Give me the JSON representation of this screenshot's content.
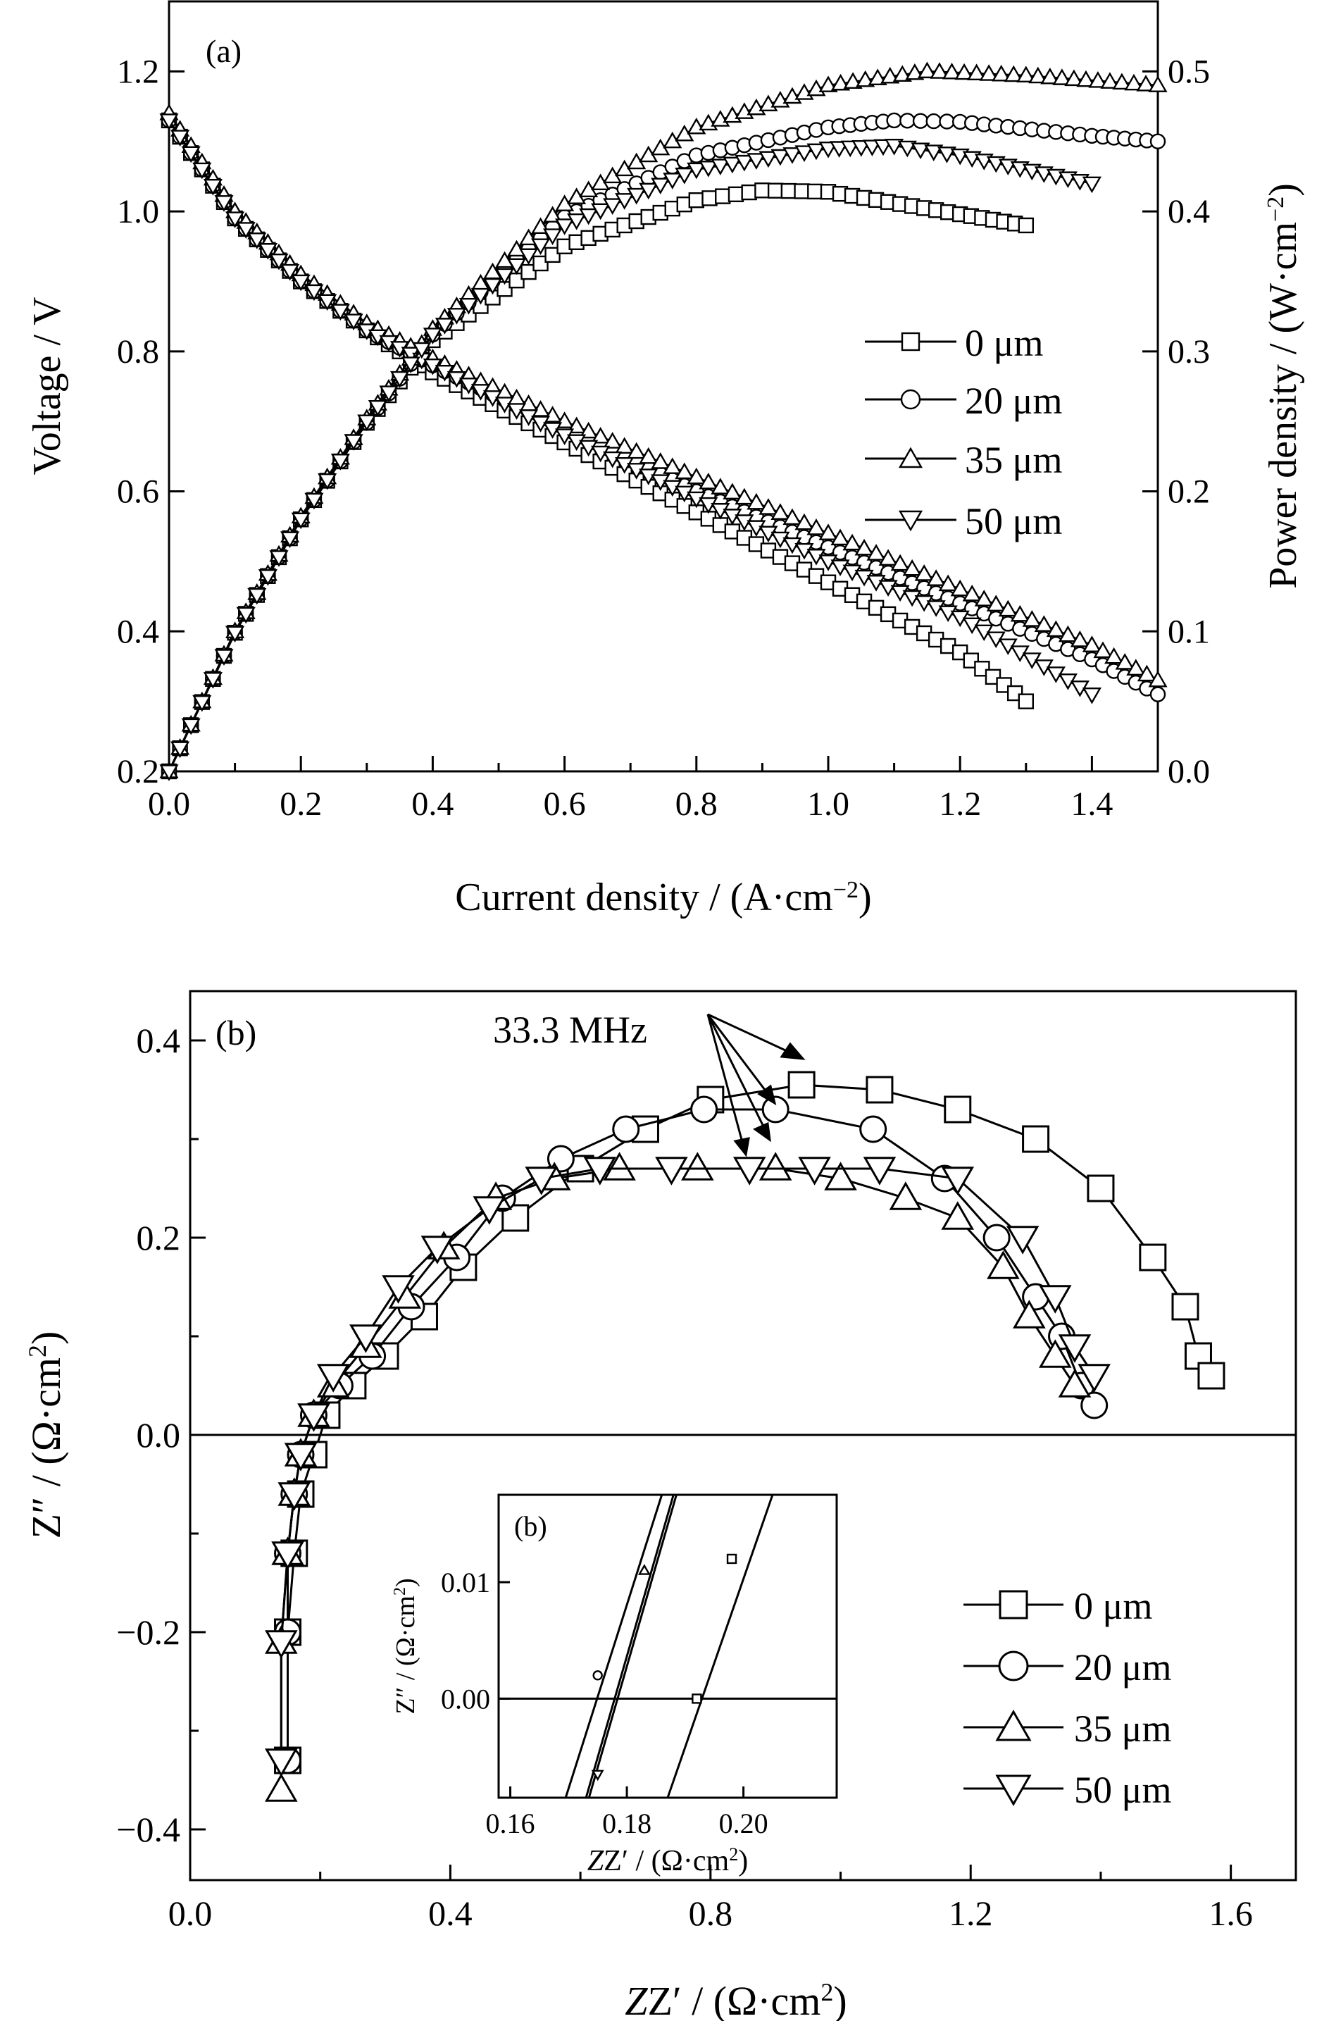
{
  "chart_data": [
    {
      "panel": "(a)",
      "type": "line",
      "xlabel": "Current density / (A·cm",
      "xlabel_sup": "−2",
      "xlabel_end": ")",
      "ylabel": "Voltage / V",
      "y2label": "Power density / (W·cm",
      "y2label_sup": "−2",
      "y2label_end": ")",
      "xlim": [
        0,
        1.5
      ],
      "ylim": [
        0.2,
        1.3
      ],
      "y2lim": [
        0,
        0.55
      ],
      "xticks": [
        "0.0",
        "0.2",
        "0.4",
        "0.6",
        "0.8",
        "1.0",
        "1.2",
        "1.4"
      ],
      "yticks": [
        "0.2",
        "0.4",
        "0.6",
        "0.8",
        "1.0",
        "1.2"
      ],
      "y2ticks": [
        "0.0",
        "0.1",
        "0.2",
        "0.3",
        "0.4",
        "0.5"
      ],
      "legend_position": "center-right",
      "series": [
        {
          "name": "0 μm",
          "marker": "square",
          "voltage": [
            [
              0,
              1.13
            ],
            [
              0.1,
              0.99
            ],
            [
              0.2,
              0.9
            ],
            [
              0.3,
              0.83
            ],
            [
              0.4,
              0.77
            ],
            [
              0.6,
              0.67
            ],
            [
              0.8,
              0.57
            ],
            [
              1.0,
              0.47
            ],
            [
              1.2,
              0.37
            ],
            [
              1.3,
              0.3
            ]
          ],
          "power": [
            [
              0,
              0
            ],
            [
              0.1,
              0.099
            ],
            [
              0.2,
              0.18
            ],
            [
              0.3,
              0.249
            ],
            [
              0.4,
              0.308
            ],
            [
              0.6,
              0.375
            ],
            [
              0.8,
              0.408
            ],
            [
              0.9,
              0.415
            ],
            [
              1.0,
              0.414
            ],
            [
              1.2,
              0.398
            ],
            [
              1.3,
              0.39
            ]
          ]
        },
        {
          "name": "20 μm",
          "marker": "circle",
          "voltage": [
            [
              0,
              1.13
            ],
            [
              0.1,
              0.99
            ],
            [
              0.2,
              0.9
            ],
            [
              0.3,
              0.83
            ],
            [
              0.4,
              0.78
            ],
            [
              0.6,
              0.69
            ],
            [
              0.8,
              0.6
            ],
            [
              1.0,
              0.52
            ],
            [
              1.2,
              0.44
            ],
            [
              1.4,
              0.36
            ],
            [
              1.5,
              0.31
            ]
          ],
          "power": [
            [
              0,
              0
            ],
            [
              0.1,
              0.099
            ],
            [
              0.2,
              0.18
            ],
            [
              0.3,
              0.249
            ],
            [
              0.4,
              0.312
            ],
            [
              0.6,
              0.396
            ],
            [
              0.8,
              0.44
            ],
            [
              1.0,
              0.46
            ],
            [
              1.1,
              0.465
            ],
            [
              1.2,
              0.464
            ],
            [
              1.4,
              0.454
            ],
            [
              1.5,
              0.45
            ]
          ]
        },
        {
          "name": "35 μm",
          "marker": "triangle-up",
          "voltage": [
            [
              0,
              1.14
            ],
            [
              0.1,
              1.0
            ],
            [
              0.2,
              0.91
            ],
            [
              0.3,
              0.84
            ],
            [
              0.4,
              0.79
            ],
            [
              0.6,
              0.7
            ],
            [
              0.8,
              0.62
            ],
            [
              1.0,
              0.54
            ],
            [
              1.2,
              0.46
            ],
            [
              1.4,
              0.38
            ],
            [
              1.5,
              0.33
            ]
          ],
          "power": [
            [
              0,
              0
            ],
            [
              0.1,
              0.1
            ],
            [
              0.2,
              0.182
            ],
            [
              0.3,
              0.252
            ],
            [
              0.4,
              0.316
            ],
            [
              0.6,
              0.405
            ],
            [
              0.8,
              0.46
            ],
            [
              1.0,
              0.49
            ],
            [
              1.15,
              0.5
            ],
            [
              1.3,
              0.497
            ],
            [
              1.5,
              0.49
            ]
          ]
        },
        {
          "name": "50 μm",
          "marker": "triangle-down",
          "voltage": [
            [
              0,
              1.13
            ],
            [
              0.1,
              0.99
            ],
            [
              0.2,
              0.9
            ],
            [
              0.3,
              0.83
            ],
            [
              0.4,
              0.78
            ],
            [
              0.6,
              0.68
            ],
            [
              0.8,
              0.59
            ],
            [
              1.0,
              0.5
            ],
            [
              1.2,
              0.42
            ],
            [
              1.4,
              0.31
            ]
          ],
          "power": [
            [
              0,
              0
            ],
            [
              0.1,
              0.099
            ],
            [
              0.2,
              0.18
            ],
            [
              0.3,
              0.25
            ],
            [
              0.4,
              0.312
            ],
            [
              0.6,
              0.39
            ],
            [
              0.8,
              0.43
            ],
            [
              1.0,
              0.445
            ],
            [
              1.1,
              0.447
            ],
            [
              1.2,
              0.44
            ],
            [
              1.4,
              0.42
            ]
          ]
        }
      ]
    },
    {
      "panel": "(b)",
      "type": "scatter",
      "xlabel": "Z′ / (Ω·cm",
      "xlabel_sup": "2",
      "xlabel_end": ")",
      "ylabel": "Z″ / (Ω·cm",
      "ylabel_sup": "2",
      "ylabel_end": ")",
      "xlim": [
        0,
        1.7
      ],
      "ylim": [
        -0.44,
        0.44
      ],
      "xticks": [
        "0.0",
        "0.4",
        "0.8",
        "1.2",
        "1.6"
      ],
      "yticks": [
        "−0.4",
        "−0.2",
        "0.0",
        "0.2",
        "0.4"
      ],
      "annotation": "33.3 MHz",
      "legend_position": "bottom-right",
      "series": [
        {
          "name": "0 μm",
          "marker": "square",
          "points": [
            [
              0.15,
              -0.33
            ],
            [
              0.15,
              -0.2
            ],
            [
              0.16,
              -0.12
            ],
            [
              0.17,
              -0.06
            ],
            [
              0.19,
              -0.02
            ],
            [
              0.21,
              0.02
            ],
            [
              0.25,
              0.05
            ],
            [
              0.3,
              0.08
            ],
            [
              0.36,
              0.12
            ],
            [
              0.42,
              0.17
            ],
            [
              0.5,
              0.22
            ],
            [
              0.6,
              0.27
            ],
            [
              0.7,
              0.31
            ],
            [
              0.8,
              0.34
            ],
            [
              0.94,
              0.355
            ],
            [
              1.06,
              0.35
            ],
            [
              1.18,
              0.33
            ],
            [
              1.3,
              0.3
            ],
            [
              1.4,
              0.25
            ],
            [
              1.48,
              0.18
            ],
            [
              1.53,
              0.13
            ],
            [
              1.55,
              0.08
            ],
            [
              1.57,
              0.06
            ]
          ]
        },
        {
          "name": "20 μm",
          "marker": "circle",
          "points": [
            [
              0.15,
              -0.33
            ],
            [
              0.15,
              -0.2
            ],
            [
              0.15,
              -0.12
            ],
            [
              0.16,
              -0.06
            ],
            [
              0.17,
              -0.02
            ],
            [
              0.19,
              0.02
            ],
            [
              0.23,
              0.05
            ],
            [
              0.28,
              0.08
            ],
            [
              0.34,
              0.13
            ],
            [
              0.41,
              0.18
            ],
            [
              0.48,
              0.24
            ],
            [
              0.57,
              0.28
            ],
            [
              0.67,
              0.31
            ],
            [
              0.79,
              0.33
            ],
            [
              0.9,
              0.33
            ],
            [
              1.05,
              0.31
            ],
            [
              1.16,
              0.26
            ],
            [
              1.24,
              0.2
            ],
            [
              1.3,
              0.14
            ],
            [
              1.34,
              0.1
            ],
            [
              1.37,
              0.05
            ],
            [
              1.39,
              0.03
            ]
          ]
        },
        {
          "name": "35 μm",
          "marker": "triangle-up",
          "points": [
            [
              0.14,
              -0.36
            ],
            [
              0.14,
              -0.21
            ],
            [
              0.15,
              -0.12
            ],
            [
              0.16,
              -0.06
            ],
            [
              0.17,
              -0.02
            ],
            [
              0.19,
              0.02
            ],
            [
              0.22,
              0.05
            ],
            [
              0.27,
              0.09
            ],
            [
              0.33,
              0.14
            ],
            [
              0.39,
              0.19
            ],
            [
              0.47,
              0.24
            ],
            [
              0.56,
              0.26
            ],
            [
              0.66,
              0.27
            ],
            [
              0.78,
              0.27
            ],
            [
              0.9,
              0.27
            ],
            [
              1.0,
              0.26
            ],
            [
              1.1,
              0.24
            ],
            [
              1.18,
              0.22
            ],
            [
              1.25,
              0.17
            ],
            [
              1.29,
              0.12
            ],
            [
              1.33,
              0.08
            ],
            [
              1.36,
              0.05
            ]
          ]
        },
        {
          "name": "50 μm",
          "marker": "triangle-down",
          "points": [
            [
              0.14,
              -0.33
            ],
            [
              0.14,
              -0.21
            ],
            [
              0.15,
              -0.12
            ],
            [
              0.16,
              -0.06
            ],
            [
              0.17,
              -0.02
            ],
            [
              0.19,
              0.02
            ],
            [
              0.22,
              0.06
            ],
            [
              0.27,
              0.1
            ],
            [
              0.32,
              0.15
            ],
            [
              0.38,
              0.19
            ],
            [
              0.46,
              0.23
            ],
            [
              0.54,
              0.26
            ],
            [
              0.63,
              0.27
            ],
            [
              0.74,
              0.27
            ],
            [
              0.86,
              0.27
            ],
            [
              0.96,
              0.27
            ],
            [
              1.06,
              0.27
            ],
            [
              1.18,
              0.26
            ],
            [
              1.28,
              0.2
            ],
            [
              1.33,
              0.14
            ],
            [
              1.36,
              0.09
            ],
            [
              1.39,
              0.06
            ]
          ]
        }
      ],
      "inset": {
        "panel": "(b)",
        "xlabel": "Z′ / (Ω·cm",
        "xlabel_sup": "2",
        "xlabel_end": ")",
        "ylabel": "Z″ / (Ω·cm",
        "ylabel_sup": "2",
        "ylabel_end": ")",
        "xlim": [
          0.158,
          0.216
        ],
        "ylim": [
          -0.0085,
          0.0175
        ],
        "xticks": [
          "0.16",
          "0.18",
          "0.20"
        ],
        "yticks": [
          "0.00",
          "0.01"
        ],
        "lines": [
          {
            "name": "0 μm",
            "marker": "square",
            "p1": [
              0.187,
              -0.0085
            ],
            "p2": [
              0.205,
              0.0175
            ],
            "marks": [
              [
                0.192,
                0.0
              ],
              [
                0.198,
                0.012
              ]
            ]
          },
          {
            "name": "20 μm",
            "marker": "circle",
            "p1": [
              0.1695,
              -0.0085
            ],
            "p2": [
              0.186,
              0.0175
            ],
            "marks": [
              [
                0.175,
                0.002
              ]
            ]
          },
          {
            "name": "35 μm",
            "marker": "triangle-up",
            "p1": [
              0.173,
              -0.0085
            ],
            "p2": [
              0.188,
              0.0175
            ],
            "marks": [
              [
                0.183,
                0.011
              ]
            ]
          },
          {
            "name": "50 μm",
            "marker": "triangle-down",
            "p1": [
              0.1735,
              -0.0085
            ],
            "p2": [
              0.1885,
              0.0175
            ],
            "marks": [
              [
                0.175,
                -0.0065
              ]
            ]
          }
        ]
      }
    }
  ]
}
